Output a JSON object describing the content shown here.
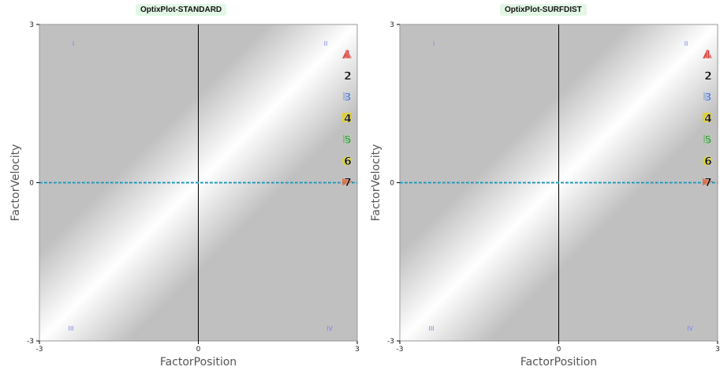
{
  "colors": {
    "plot_background": "#c0c0c0",
    "band_center": "#ffffff",
    "reference_line": "#2aa9c7",
    "title_background": "#e3f7e6",
    "quadrant_label": "#7f86e6"
  },
  "chart_data": [
    {
      "type": "scatter",
      "title": "OptixPlot-STANDARD",
      "xlabel": "FactorPosition",
      "ylabel": "FactorVelocity",
      "xlim": [
        -3,
        3
      ],
      "ylim": [
        -3,
        3
      ],
      "x_ticks": [
        "-3",
        "0",
        "3"
      ],
      "y_ticks": [
        "3",
        "0",
        "-3"
      ],
      "quadrants": [
        "I",
        "II",
        "III",
        "IV"
      ],
      "reference_line_y": 0,
      "grid": false,
      "legend_position": "right",
      "markers": [
        {
          "label": "1",
          "color": "#d9403a",
          "icon": "triangle-icon"
        },
        {
          "label": "2",
          "color": "#111111",
          "icon": "text-marker-icon"
        },
        {
          "label": "3",
          "color": "#5f7fc9",
          "icon": "flag-icon"
        },
        {
          "label": "4",
          "color": "#e0d01e",
          "icon": "highlight-box-icon"
        },
        {
          "label": "5",
          "color": "#3a9b3a",
          "icon": "flag-icon"
        },
        {
          "label": "6",
          "color": "#d9d31e",
          "icon": "circle-icon"
        },
        {
          "label": "7",
          "color": "#e06a3c",
          "icon": "cross-marker-icon"
        }
      ]
    },
    {
      "type": "scatter",
      "title": "OptixPlot-SURFDIST",
      "xlabel": "FactorPosition",
      "ylabel": "FactorVelocity",
      "xlim": [
        -3,
        3
      ],
      "ylim": [
        -3,
        3
      ],
      "x_ticks": [
        "-3",
        "0",
        "3"
      ],
      "y_ticks": [
        "3",
        "0",
        "-3"
      ],
      "quadrants": [
        "I",
        "II",
        "III",
        "IV"
      ],
      "reference_line_y": 0,
      "grid": false,
      "legend_position": "right",
      "markers": [
        {
          "label": "1",
          "color": "#d9403a",
          "icon": "triangle-icon"
        },
        {
          "label": "2",
          "color": "#111111",
          "icon": "text-marker-icon"
        },
        {
          "label": "3",
          "color": "#5f7fc9",
          "icon": "flag-icon"
        },
        {
          "label": "4",
          "color": "#e0d01e",
          "icon": "highlight-box-icon"
        },
        {
          "label": "5",
          "color": "#3a9b3a",
          "icon": "flag-icon"
        },
        {
          "label": "6",
          "color": "#d9d31e",
          "icon": "circle-icon"
        },
        {
          "label": "7",
          "color": "#e06a3c",
          "icon": "cross-marker-icon"
        }
      ]
    }
  ]
}
